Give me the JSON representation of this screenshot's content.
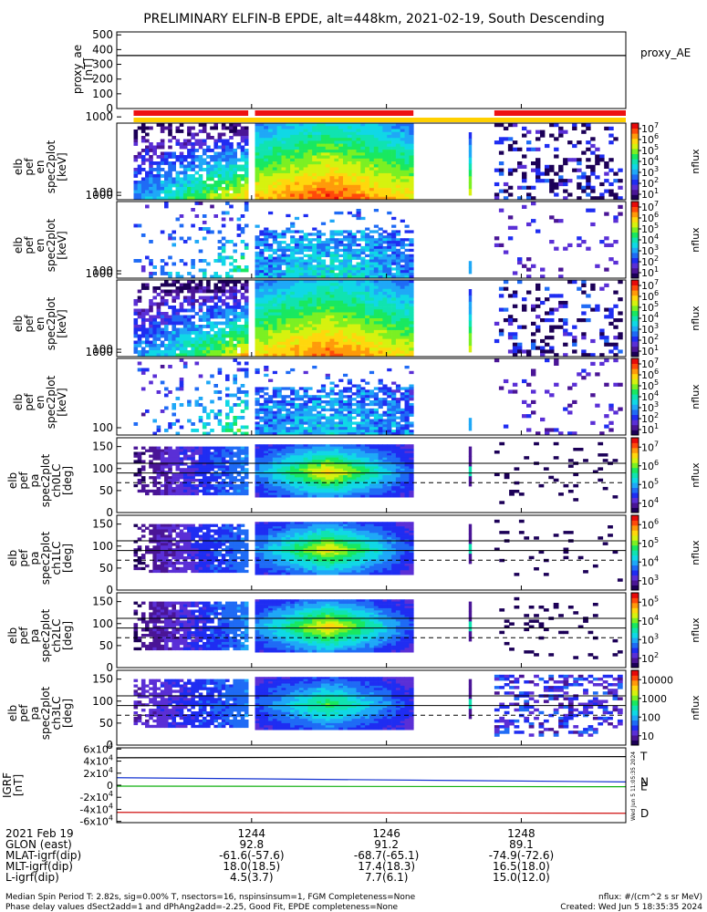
{
  "chart_data": {
    "type": "heatmap",
    "title": "PRELIMINARY ELFIN-B EPDE, alt=448km, 2021-02-19, South Descending",
    "colors": {
      "palette": [
        "#1c0057",
        "#4a1596",
        "#5a2fd6",
        "#1f2df2",
        "#1f6bf5",
        "#1fa8f7",
        "#10d8e6",
        "#10e3b0",
        "#19e860",
        "#7bf023",
        "#d6f20f",
        "#ffd70d",
        "#ff9a0a",
        "#ff4a0a",
        "#e80a0a"
      ],
      "igrf_T": "#000000",
      "igrf_N": "#1030d0",
      "igrf_E": "#10b010",
      "igrf_D": "#d01010",
      "orbit_bar": "#ee1111",
      "quality_bar": "#ffd000"
    },
    "time_axis": {
      "labels": [
        "1244",
        "1246",
        "1248"
      ],
      "range_min": [
        1242.0,
        1249.55
      ],
      "data_start_min": 1242.25
    },
    "orbit_bar_segments": [
      [
        1242.25,
        1243.95
      ],
      [
        1244.05,
        1246.4
      ],
      [
        1247.6,
        1249.55
      ]
    ],
    "quality_bar_segments": [
      [
        1242.25,
        1249.55
      ]
    ],
    "proxy_ae": {
      "ylabel": [
        "proxy_ae",
        "[nT]"
      ],
      "legend": "proxy_AE",
      "ticks": [
        "0",
        "100",
        "200",
        "300",
        "400",
        "500"
      ],
      "ylim": [
        0,
        520
      ],
      "value": 360
    },
    "energy_panels": [
      {
        "ylabel": [
          "elb",
          "pef",
          "en",
          "spec2plot",
          "[keV]"
        ],
        "ticks": [
          "100",
          "1000"
        ],
        "intensity": 1.0,
        "cbar_ticks": [
          "10^1",
          "10^2",
          "10^3",
          "10^4",
          "10^5",
          "10^6",
          "10^7"
        ]
      },
      {
        "ylabel": [
          "elb",
          "pef",
          "en",
          "spec2plot",
          "[keV]"
        ],
        "ticks": [
          "100",
          "1000"
        ],
        "intensity": 0.55,
        "cbar_ticks": [
          "10^1",
          "10^2",
          "10^3",
          "10^4",
          "10^5",
          "10^6",
          "10^7"
        ]
      },
      {
        "ylabel": [
          "elb",
          "pef",
          "en",
          "spec2plot",
          "[keV]"
        ],
        "ticks": [
          "100",
          "1000"
        ],
        "intensity": 0.95,
        "cbar_ticks": [
          "10^1",
          "10^2",
          "10^3",
          "10^4",
          "10^5",
          "10^6",
          "10^7"
        ]
      },
      {
        "ylabel": [
          "elb",
          "pef",
          "en",
          "spec2plot",
          "[keV]"
        ],
        "ticks": [
          "100",
          "1000"
        ],
        "intensity": 0.4,
        "cbar_ticks": [
          "10^1",
          "10^2",
          "10^3",
          "10^4",
          "10^5",
          "10^6",
          "10^7"
        ]
      }
    ],
    "colorbar_label": "nflux",
    "pitch_panels": [
      {
        "ylabel": [
          "elb",
          "pef",
          "pa",
          "spec2plot",
          "ch0LC",
          "[deg]"
        ],
        "ticks": [
          "0",
          "50",
          "100",
          "150"
        ],
        "cbar_ticks": [
          "10^4",
          "10^5",
          "10^6",
          "10^7"
        ],
        "intensity": 1.0
      },
      {
        "ylabel": [
          "elb",
          "pef",
          "pa",
          "spec2plot",
          "ch1LC",
          "[deg]"
        ],
        "ticks": [
          "0",
          "50",
          "100",
          "150"
        ],
        "cbar_ticks": [
          "10^3",
          "10^4",
          "10^5",
          "10^6"
        ],
        "intensity": 0.95
      },
      {
        "ylabel": [
          "elb",
          "pef",
          "pa",
          "spec2plot",
          "ch2LC",
          "[deg]"
        ],
        "ticks": [
          "0",
          "50",
          "100",
          "150"
        ],
        "cbar_ticks": [
          "10^2",
          "10^3",
          "10^4",
          "10^5"
        ],
        "intensity": 1.0
      },
      {
        "ylabel": [
          "elb",
          "pef",
          "pa",
          "spec2plot",
          "ch3LC",
          "[deg]"
        ],
        "ticks": [
          "0",
          "50",
          "100",
          "150"
        ],
        "cbar_ticks": [
          "10",
          "100",
          "1000",
          "10000"
        ],
        "intensity": 0.7
      }
    ],
    "igrf": {
      "ylabel": [
        "IGRF",
        "[nT]"
      ],
      "ticks": [
        "-6x10^4",
        "-4x10^4",
        "-2x10^4",
        "0",
        "2x10^4",
        "4x10^4",
        "6x10^4"
      ],
      "ylim": [
        -62000,
        62000
      ],
      "series": [
        {
          "name": "T",
          "start": 45500,
          "end": 47500
        },
        {
          "name": "N",
          "start": 12500,
          "end": 5500
        },
        {
          "name": "E",
          "start": -1500,
          "end": -2500
        },
        {
          "name": "D",
          "start": -45000,
          "end": -46500
        }
      ],
      "side_note": "Wed Jun  5 11:05:35 2024"
    }
  },
  "footer": {
    "rows": [
      {
        "label": "2021 Feb 19",
        "values": [
          "1244",
          "1246",
          "1248"
        ]
      },
      {
        "label": "GLON (east)",
        "values": [
          "92.8",
          "91.2",
          "89.1"
        ]
      },
      {
        "label": "MLAT-igrf(dip)",
        "values": [
          "-61.6(-57.6)",
          "-68.7(-65.1)",
          "-74.9(-72.6)"
        ]
      },
      {
        "label": "MLT-igrf(dip)",
        "values": [
          "18.0(18.5)",
          "17.4(18.3)",
          "16.5(18.0)"
        ]
      },
      {
        "label": "L-igrf(dip)",
        "values": [
          "4.5(3.7)",
          "7.7(6.1)",
          "15.0(12.0)"
        ]
      }
    ],
    "note1": "Median Spin Period T: 2.82s, sig=0.00% T, nsectors=16, nspinsinsum=1, FGM Completeness=None",
    "note2": "Phase delay values dSect2add=1 and dPhAng2add=-2.25, Good Fit, EPDE completeness=None",
    "units": "nflux: #/(cm^2 s sr MeV)",
    "created": "Created: Wed Jun  5 18:35:35 2024"
  }
}
